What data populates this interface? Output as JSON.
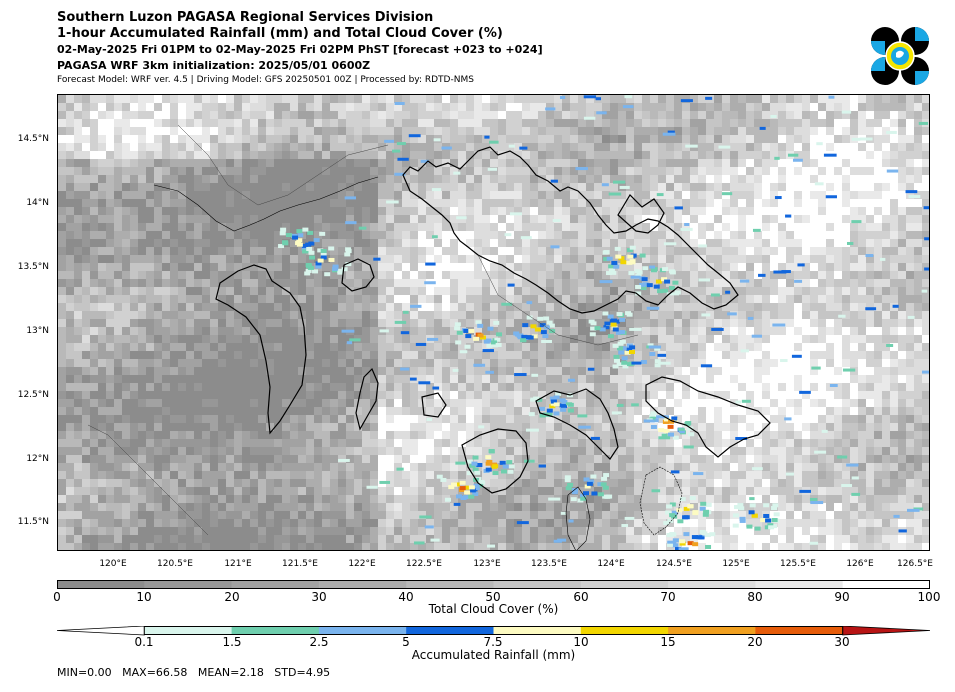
{
  "header": {
    "title1": "Southern Luzon PAGASA Regional Services Division",
    "title2": "1-hour Accumulated Rainfall (mm) and Total Cloud Cover (%)",
    "title3": "02-May-2025 Fri 01PM to 02-May-2025 Fri 02PM PhST [forecast +023 to +024]",
    "title4": "PAGASA WRF 3km initialization: 2025/05/01 0600Z",
    "title5": "Forecast Model: WRF ver. 4.5 | Driving Model: GFS 20250501 00Z | Processed by: RDTD-NMS"
  },
  "logo": {
    "icon": "pagasa-logo",
    "colors": {
      "black": "#000000",
      "blue": "#1aa7e4",
      "yellow": "#f7e600"
    }
  },
  "map": {
    "lat_labels": [
      "14.5°N",
      "14°N",
      "13.5°N",
      "13°N",
      "12.5°N",
      "12°N",
      "11.5°N"
    ],
    "lat_values": [
      14.5,
      14.0,
      13.5,
      13.0,
      12.5,
      12.0,
      11.5
    ],
    "lon_labels": [
      "120°E",
      "120.5°E",
      "121°E",
      "121.5°E",
      "122°E",
      "122.5°E",
      "123°E",
      "123.5°E",
      "124°E",
      "124.5°E",
      "125°E",
      "125.5°E",
      "126°E",
      "126.5°E"
    ],
    "lon_values": [
      120.0,
      120.5,
      121.0,
      121.5,
      122.0,
      122.5,
      123.0,
      123.5,
      124.0,
      124.5,
      125.0,
      125.5,
      126.0,
      126.5
    ],
    "lon_range": [
      119.54,
      126.55
    ],
    "lat_range": [
      11.28,
      14.85
    ],
    "heavy_rain_cells": [
      {
        "lon": 122.78,
        "lat": 11.78,
        "level": 20
      },
      {
        "lon": 123.02,
        "lat": 11.98,
        "level": 20
      },
      {
        "lon": 123.35,
        "lat": 13.01,
        "level": 20
      },
      {
        "lon": 122.92,
        "lat": 12.98,
        "level": 20
      },
      {
        "lon": 124.45,
        "lat": 12.27,
        "level": 30
      },
      {
        "lon": 124.62,
        "lat": 11.34,
        "level": 30
      },
      {
        "lon": 124.09,
        "lat": 13.56,
        "level": 15
      },
      {
        "lon": 124.35,
        "lat": 13.4,
        "level": 15
      },
      {
        "lon": 124.18,
        "lat": 12.83,
        "level": 15
      },
      {
        "lon": 124.6,
        "lat": 11.6,
        "level": 15
      },
      {
        "lon": 125.15,
        "lat": 11.55,
        "level": 15
      },
      {
        "lon": 123.52,
        "lat": 12.42,
        "level": 10
      },
      {
        "lon": 123.8,
        "lat": 11.78,
        "level": 10
      },
      {
        "lon": 124.0,
        "lat": 13.05,
        "level": 10
      },
      {
        "lon": 121.5,
        "lat": 13.7,
        "level": 10
      },
      {
        "lon": 121.7,
        "lat": 13.55,
        "level": 10
      }
    ]
  },
  "cloud_colorbar": {
    "ticks": [
      "0",
      "10",
      "20",
      "30",
      "40",
      "50",
      "60",
      "70",
      "80",
      "90",
      "100"
    ],
    "colors": [
      "#8c8c8c",
      "#979797",
      "#a2a2a2",
      "#adadad",
      "#b9b9b9",
      "#c5c5c5",
      "#d1d1d1",
      "#dddddd",
      "#e9e9e9",
      "#ffffff"
    ],
    "label": "Total Cloud Cover (%)"
  },
  "rain_colorbar": {
    "ticks": [
      "0.1",
      "1.5",
      "2.5",
      "5",
      "7.5",
      "10",
      "15",
      "20",
      "30"
    ],
    "colors": [
      "#ffffff",
      "#d9f5ec",
      "#6fcfae",
      "#7ab4ee",
      "#1166dd",
      "#fdfbc2",
      "#f2d600",
      "#f0a020",
      "#e65c0a",
      "#b81414"
    ],
    "label": "Accumulated Rainfall (mm)"
  },
  "stats": "MIN=0.00   MAX=66.58   MEAN=2.18   STD=4.95"
}
